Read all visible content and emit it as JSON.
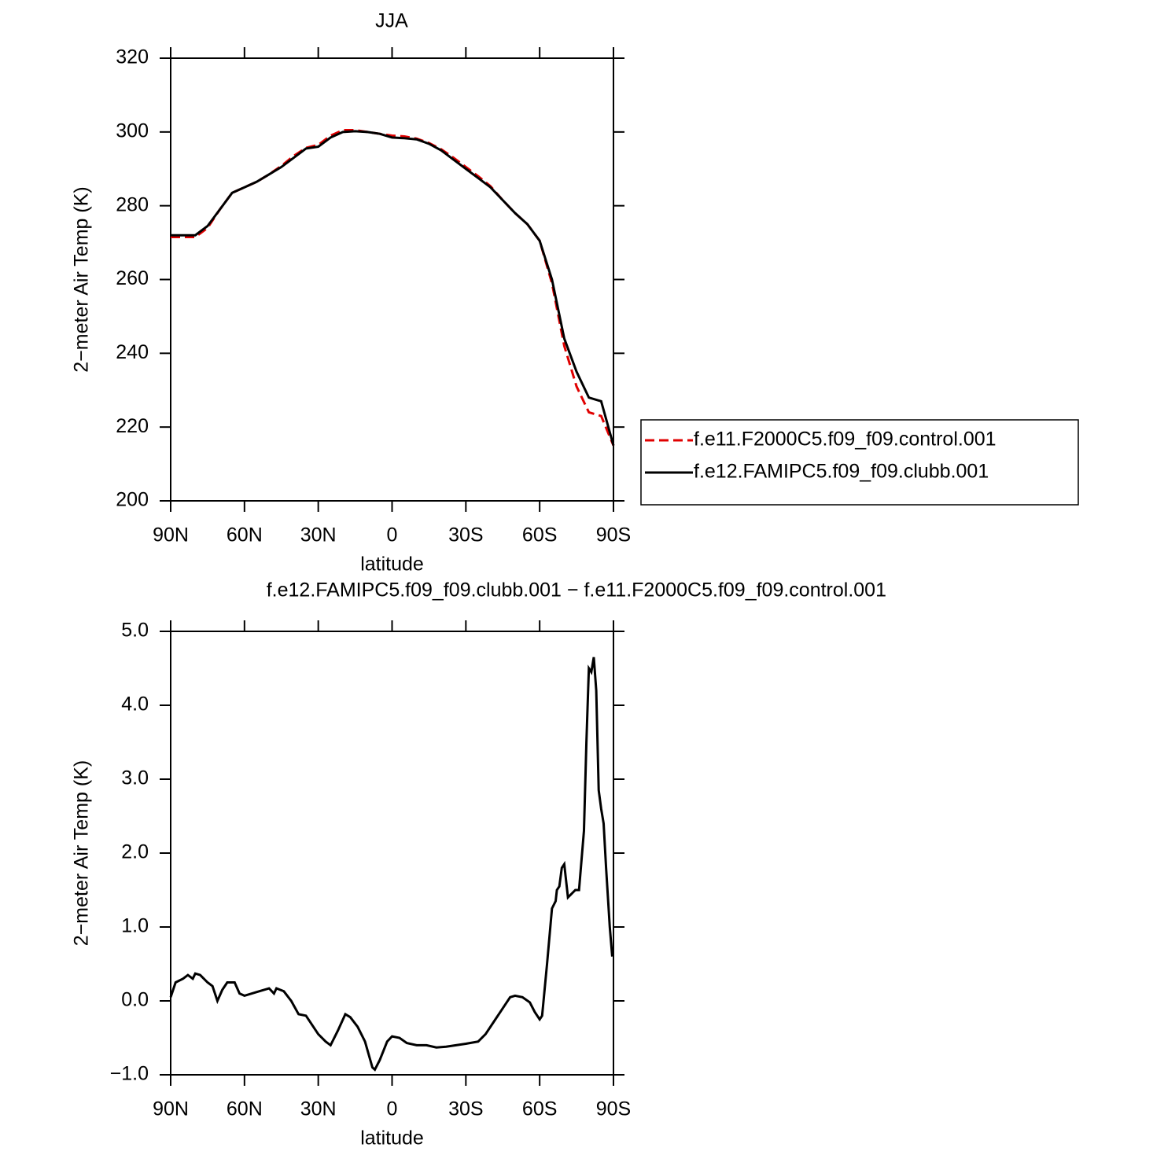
{
  "chart_data": [
    {
      "type": "line",
      "title": "JJA",
      "xlabel": "latitude",
      "ylabel": "2−meter Air Temp (K)",
      "x": [
        90,
        85,
        80,
        75,
        70,
        65,
        60,
        55,
        50,
        45,
        40,
        35,
        30,
        25,
        20,
        15,
        10,
        5,
        0,
        -5,
        -10,
        -15,
        -20,
        -25,
        -30,
        -35,
        -40,
        -45,
        -50,
        -55,
        -60,
        -65,
        -70,
        -75,
        -80,
        -85,
        -90
      ],
      "series": [
        {
          "name": "f.e11.F2000C5.f09_f09.control.001",
          "color": "#e00000",
          "dash": "dashed",
          "values": [
            271.5,
            271.5,
            271.5,
            274,
            279,
            283.5,
            285,
            286.5,
            288.5,
            290.8,
            293.5,
            295.7,
            296.5,
            299,
            300.5,
            300.5,
            300,
            299.5,
            299,
            298.8,
            298.2,
            297,
            295.3,
            293,
            290.5,
            288,
            285.3,
            281.5,
            278,
            275,
            270.5,
            259,
            242,
            231,
            224,
            223,
            215
          ]
        },
        {
          "name": "f.e12.FAMIPC5.f09_f09.clubb.001",
          "color": "#000000",
          "dash": "solid",
          "values": [
            272,
            272,
            272,
            274.5,
            279,
            283.5,
            285,
            286.5,
            288.5,
            290.5,
            293,
            295.5,
            296,
            298.5,
            300,
            300.2,
            300,
            299.5,
            298.5,
            298.3,
            298,
            296.8,
            295,
            292.5,
            290,
            287.5,
            285,
            281.5,
            278,
            275,
            270.5,
            260,
            244,
            235,
            228,
            227,
            215
          ]
        }
      ],
      "xlim": [
        90,
        -90
      ],
      "xticks": [
        {
          "value": 90,
          "label": "90N"
        },
        {
          "value": 60,
          "label": "60N"
        },
        {
          "value": 30,
          "label": "30N"
        },
        0,
        {
          "value": -30,
          "label": "30S"
        },
        {
          "value": -60,
          "label": "60S"
        },
        {
          "value": -90,
          "label": "90S"
        }
      ],
      "ylim": [
        200,
        320
      ],
      "yticks": [
        200,
        220,
        240,
        260,
        280,
        300,
        320
      ],
      "legend": "right"
    },
    {
      "type": "line",
      "title": "f.e12.FAMIPC5.f09_f09.clubb.001 − f.e11.F2000C5.f09_f09.control.001",
      "xlabel": "latitude",
      "ylabel": "2−meter Air Temp (K)",
      "x": [
        90,
        88,
        85,
        83,
        81,
        80,
        78,
        75,
        73,
        71,
        69,
        67,
        64,
        62,
        60,
        55,
        50,
        48,
        47,
        44,
        41,
        38,
        35,
        32,
        30,
        27,
        25,
        22,
        19,
        17,
        14,
        11,
        8,
        7,
        5,
        2,
        0,
        -3,
        -6,
        -10,
        -14,
        -18,
        -22,
        -26,
        -30,
        -35,
        -38,
        -42,
        -46,
        -48,
        -50,
        -53,
        -56,
        -58,
        -60,
        -61,
        -63,
        -65,
        -66.5,
        -67,
        -68,
        -69,
        -70,
        -71,
        -71.5,
        -73,
        -74.5,
        -76,
        -78,
        -79,
        -80,
        -81,
        -82,
        -83,
        -84,
        -85,
        -86,
        -87,
        -88.5,
        -89.5
      ],
      "series": [
        {
          "color": "#000000",
          "dash": "solid",
          "values": [
            0.05,
            0.25,
            0.3,
            0.35,
            0.3,
            0.37,
            0.35,
            0.25,
            0.2,
            0.0,
            0.15,
            0.25,
            0.25,
            0.1,
            0.07,
            0.12,
            0.17,
            0.1,
            0.17,
            0.13,
            0.0,
            -0.18,
            -0.2,
            -0.35,
            -0.45,
            -0.55,
            -0.6,
            -0.4,
            -0.18,
            -0.22,
            -0.35,
            -0.55,
            -0.9,
            -0.93,
            -0.8,
            -0.55,
            -0.48,
            -0.5,
            -0.57,
            -0.6,
            -0.6,
            -0.63,
            -0.62,
            -0.6,
            -0.58,
            -0.55,
            -0.45,
            -0.25,
            -0.05,
            0.05,
            0.07,
            0.05,
            -0.02,
            -0.15,
            -0.25,
            -0.2,
            0.5,
            1.25,
            1.35,
            1.5,
            1.55,
            1.8,
            1.85,
            1.55,
            1.4,
            1.45,
            1.5,
            1.5,
            2.3,
            3.5,
            4.5,
            4.45,
            4.65,
            4.2,
            2.85,
            2.6,
            2.4,
            1.8,
            1.0,
            0.6
          ]
        }
      ],
      "xlim": [
        90,
        -90
      ],
      "xticks": [
        {
          "value": 90,
          "label": "90N"
        },
        {
          "value": 60,
          "label": "60N"
        },
        {
          "value": 30,
          "label": "30N"
        },
        0,
        {
          "value": -30,
          "label": "30S"
        },
        {
          "value": -60,
          "label": "60S"
        },
        {
          "value": -90,
          "label": "90S"
        }
      ],
      "ylim": [
        -1,
        5
      ],
      "yticks": [
        {
          "value": -1,
          "label": "−1.0"
        },
        {
          "value": 0,
          "label": "0.0"
        },
        {
          "value": 1,
          "label": "1.0"
        },
        {
          "value": 2,
          "label": "2.0"
        },
        {
          "value": 3,
          "label": "3.0"
        },
        {
          "value": 4,
          "label": "4.0"
        },
        {
          "value": 5,
          "label": "5.0"
        }
      ]
    }
  ]
}
